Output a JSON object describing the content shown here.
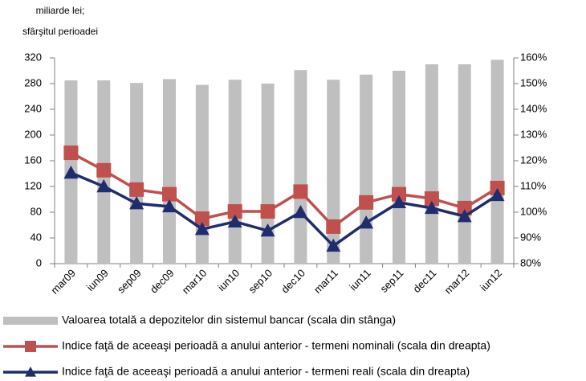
{
  "chart_data": {
    "type": "bar",
    "ylabel": [
      "miliarde lei;",
      "sfârşitul perioadei"
    ],
    "categories": [
      "mar09",
      "iun09",
      "sep09",
      "dec09",
      "mar10",
      "iun10",
      "sep10",
      "dec10",
      "mar11",
      "iun11",
      "sep11",
      "dec11",
      "mar12",
      "iun12"
    ],
    "series": [
      {
        "name": "Valoarea totală a depozitelor din sistemul bancar (scala din stânga)",
        "type": "bar",
        "color": "#bfbfbf",
        "values": [
          285,
          285,
          281,
          287,
          278,
          286,
          280,
          301,
          286,
          294,
          300,
          310,
          310,
          317
        ]
      },
      {
        "name": "Indice faţă de aceeaşi perioadă a anului anterior - termeni nominali (scala din dreapta)",
        "type": "line",
        "marker": "square",
        "axis": "y2",
        "color": "#c0504d",
        "values": [
          123.1,
          116.3,
          108.8,
          107,
          97.5,
          100.3,
          100.3,
          108,
          94.4,
          103.8,
          107,
          105.3,
          101.6,
          109.4
        ]
      },
      {
        "name": "Indice faţă de aceeaşi perioadă a anului anterior - termeni reali (scala din dreapta)",
        "type": "line",
        "marker": "triangle",
        "axis": "y2",
        "color": "#1f2d6e",
        "values": [
          115.3,
          110,
          103.4,
          102.2,
          93.4,
          96.3,
          92.8,
          100,
          86.9,
          95.9,
          103.8,
          101.6,
          98.4,
          106.6
        ]
      }
    ],
    "ylim": [
      0,
      320
    ],
    "yticks": [
      0,
      40,
      80,
      120,
      160,
      200,
      240,
      280,
      320
    ],
    "y2lim": [
      80,
      160
    ],
    "y2ticks": [
      {
        "value": 80,
        "label": "80%"
      },
      {
        "value": 90,
        "label": "90%"
      },
      {
        "value": 100,
        "label": "100%"
      },
      {
        "value": 110,
        "label": "110%"
      },
      {
        "value": 120,
        "label": "120%"
      },
      {
        "value": 130,
        "label": "130%"
      },
      {
        "value": 140,
        "label": "140%"
      },
      {
        "value": 150,
        "label": "150%"
      },
      {
        "value": 160,
        "label": "160%"
      }
    ],
    "grid": false,
    "legend": "bottom"
  }
}
